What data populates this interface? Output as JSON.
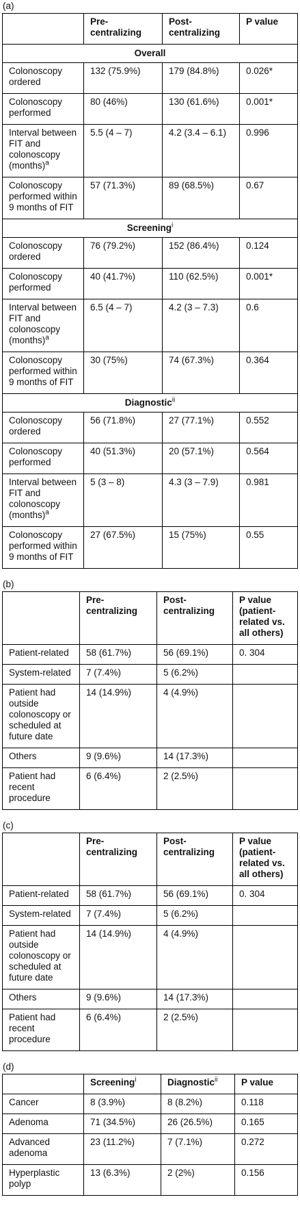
{
  "tables": [
    {
      "label": "(a)",
      "header": [
        null,
        "Pre-centralizing",
        "Post-centralizing",
        "P value"
      ],
      "sections": [
        {
          "title": {
            "text": "Overall",
            "sup": null
          },
          "rows": [
            [
              {
                "text": "Colonoscopy ordered",
                "sup": null
              },
              "132 (75.9%)",
              "179 (84.8%)",
              "0.026*"
            ],
            [
              {
                "text": "Colonoscopy performed",
                "sup": null
              },
              "80 (46%)",
              "130 (61.6%)",
              "0.001*"
            ],
            [
              {
                "text": "Interval between FIT and colonoscopy (months)",
                "sup": "a"
              },
              "5.5 (4 – 7)",
              "4.2 (3.4 – 6.1)",
              "0.996"
            ],
            [
              {
                "text": "Colonoscopy performed within 9 months of FIT",
                "sup": null
              },
              "57 (71.3%)",
              "89 (68.5%)",
              "0.67"
            ]
          ]
        },
        {
          "title": {
            "text": "Screening",
            "sup": "i"
          },
          "rows": [
            [
              {
                "text": "Colonoscopy ordered",
                "sup": null
              },
              "76 (79.2%)",
              "152 (86.4%)",
              "0.124"
            ],
            [
              {
                "text": "Colonoscopy performed",
                "sup": null
              },
              "40 (41.7%)",
              "110 (62.5%)",
              "0.001*"
            ],
            [
              {
                "text": "Interval between FIT and colonoscopy (months)",
                "sup": "a"
              },
              "6.5 (4 – 7)",
              "4.2 (3 – 7.3)",
              "0.6"
            ],
            [
              {
                "text": "Colonoscopy performed within 9 months of FIT",
                "sup": null
              },
              "30 (75%)",
              "74 (67.3%)",
              "0.364"
            ]
          ]
        },
        {
          "title": {
            "text": "Diagnostic",
            "sup": "ii"
          },
          "rows": [
            [
              {
                "text": "Colonoscopy ordered",
                "sup": null
              },
              "56 (71.8%)",
              "27 (77.1%)",
              "0.552"
            ],
            [
              {
                "text": "Colonoscopy performed",
                "sup": null
              },
              "40 (51.3%)",
              "20 (57.1%)",
              "0.564"
            ],
            [
              {
                "text": "Interval between FIT and colonoscopy (months)",
                "sup": "a"
              },
              "5 (3 – 8)",
              "4.3 (3 – 7.9)",
              "0.981"
            ],
            [
              {
                "text": "Colonoscopy performed within 9 months of FIT",
                "sup": null
              },
              "27 (67.5%)",
              "15 (75%)",
              "0.55"
            ]
          ]
        }
      ]
    },
    {
      "label": "(b)",
      "header": [
        null,
        "Pre-centralizing",
        "Post-centralizing",
        "P value (patient-related vs. all others)"
      ],
      "sections": [
        {
          "title": null,
          "rows": [
            [
              {
                "text": "Patient-related",
                "sup": null
              },
              "58 (61.7%)",
              "56 (69.1%)",
              "0. 304"
            ],
            [
              {
                "text": "System-related",
                "sup": null
              },
              "7 (7.4%)",
              "5 (6.2%)",
              null
            ],
            [
              {
                "text": "Patient had outside colonoscopy or scheduled at future date",
                "sup": null
              },
              "14 (14.9%)",
              "4 (4.9%)",
              null
            ],
            [
              {
                "text": "Others",
                "sup": null
              },
              "9 (9.6%)",
              "14 (17.3%)",
              null
            ],
            [
              {
                "text": "Patient had recent procedure",
                "sup": null
              },
              "6 (6.4%)",
              "2 (2.5%)",
              null
            ]
          ]
        }
      ]
    },
    {
      "label": "(c)",
      "header": [
        null,
        "Pre-centralizing",
        "Post-centralizing",
        "P value (patient-related vs. all others)"
      ],
      "sections": [
        {
          "title": null,
          "rows": [
            [
              {
                "text": "Patient-related",
                "sup": null
              },
              "58 (61.7%)",
              "56 (69.1%)",
              "0. 304"
            ],
            [
              {
                "text": "System-related",
                "sup": null
              },
              "7 (7.4%)",
              "5 (6.2%)",
              null
            ],
            [
              {
                "text": "Patient had outside colonoscopy or scheduled at future date",
                "sup": null
              },
              "14 (14.9%)",
              "4 (4.9%)",
              null
            ],
            [
              {
                "text": "Others",
                "sup": null
              },
              "9 (9.6%)",
              "14 (17.3%)",
              null
            ],
            [
              {
                "text": "Patient had recent procedure",
                "sup": null
              },
              "6 (6.4%)",
              "2 (2.5%)",
              null
            ]
          ]
        }
      ]
    },
    {
      "label": "(d)",
      "header": [
        null,
        {
          "text": "Screening",
          "sup": "i"
        },
        {
          "text": "Diagnostic",
          "sup": "ii"
        },
        "P value"
      ],
      "sections": [
        {
          "title": null,
          "rows": [
            [
              {
                "text": "Cancer",
                "sup": null
              },
              "8 (3.9%)",
              "8 (8.2%)",
              "0.118"
            ],
            [
              {
                "text": "Adenoma",
                "sup": null
              },
              "71 (34.5%)",
              "26 (26.5%)",
              "0.165"
            ],
            [
              {
                "text": "Advanced adenoma",
                "sup": null
              },
              "23 (11.2%)",
              "7 (7.1%)",
              "0.272"
            ],
            [
              {
                "text": "Hyperplastic polyp",
                "sup": null
              },
              "13 (6.3%)",
              "2 (2%)",
              "0.156"
            ]
          ]
        }
      ]
    }
  ]
}
